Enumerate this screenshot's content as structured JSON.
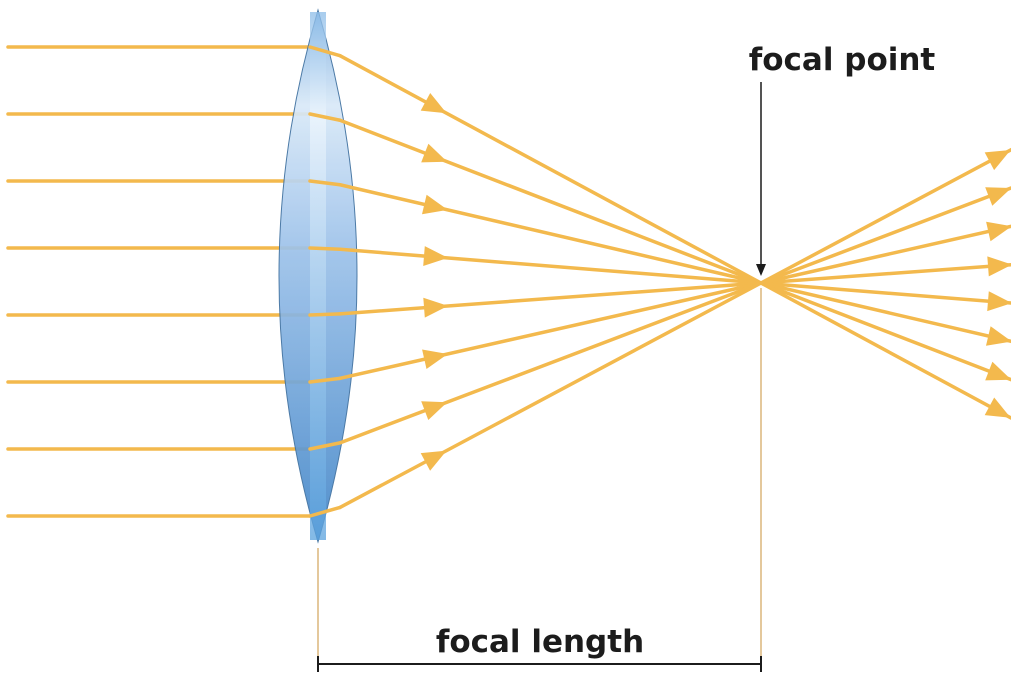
{
  "labels": {
    "focal_point": "focal point",
    "focal_length": "focal length"
  },
  "colors": {
    "ray": "#f3b94d",
    "lens_light": "#cfe3f6",
    "lens_dark": "#4d8fcf",
    "line": "#1c1c1c",
    "guide": "#c8903a"
  }
}
